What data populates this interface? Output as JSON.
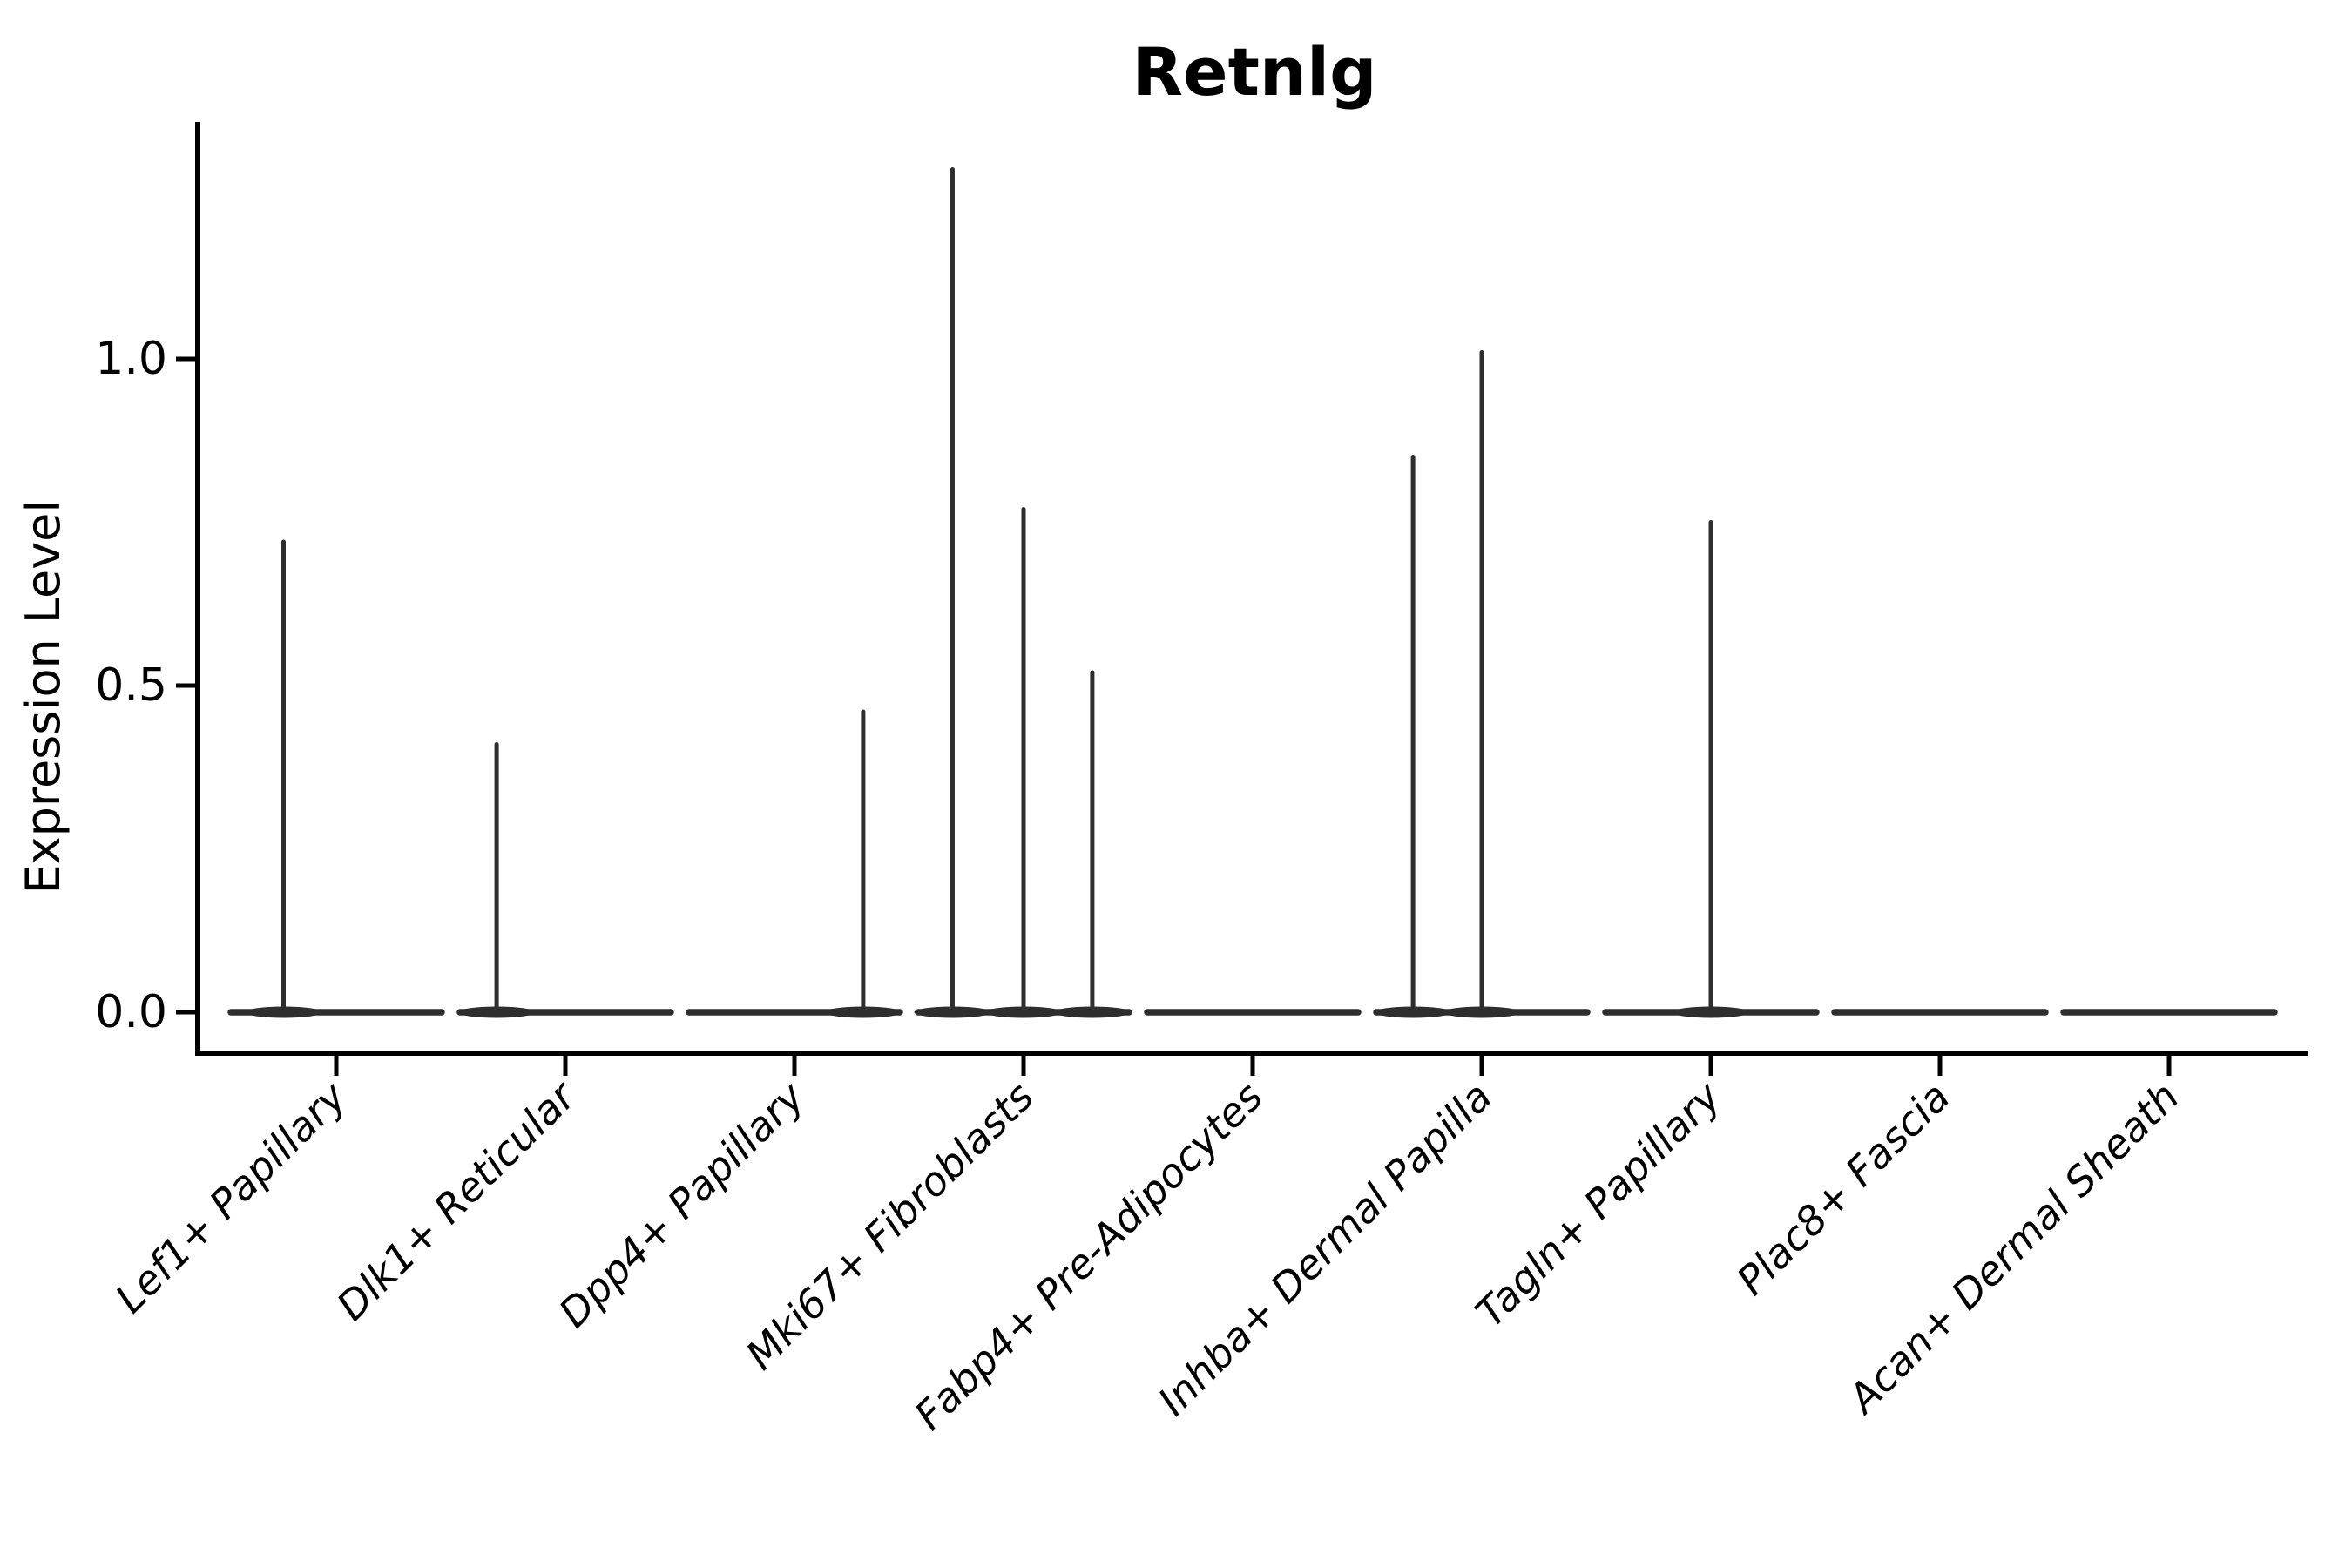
{
  "title": "Retnlg",
  "chart_data": {
    "type": "violin",
    "title": "Retnlg",
    "xlabel": "",
    "ylabel": "Expression Level",
    "yticks": [
      {
        "value": 0.0,
        "label": "0.0"
      },
      {
        "value": 0.5,
        "label": "0.5"
      },
      {
        "value": 1.0,
        "label": "1.0"
      }
    ],
    "ylim": [
      0.0,
      1.36
    ],
    "grid": false,
    "legend": "none",
    "categories": [
      "Lef1+ Papillary",
      "Dlk1+ Reticular",
      "Dpp4+ Papillary",
      "Mki67+ Fibroblasts",
      "Fabp4+ Pre-Adipocytes",
      "Inhba+ Dermal Papilla",
      "Tagln+ Papillary",
      "Plac8+ Fascia",
      "Acan+ Dermal Sheath"
    ],
    "violins": [
      {
        "category": "Lef1+ Papillary",
        "base_at_zero": true,
        "spikes": [
          {
            "offset_frac": -0.23,
            "value": 0.72
          }
        ]
      },
      {
        "category": "Dlk1+ Reticular",
        "base_at_zero": true,
        "spikes": [
          {
            "offset_frac": -0.3,
            "value": 0.41
          }
        ]
      },
      {
        "category": "Dpp4+ Papillary",
        "base_at_zero": true,
        "spikes": [
          {
            "offset_frac": 0.3,
            "value": 0.46
          }
        ]
      },
      {
        "category": "Mki67+ Fibroblasts",
        "base_at_zero": true,
        "spikes": [
          {
            "offset_frac": -0.31,
            "value": 1.29
          },
          {
            "offset_frac": 0.0,
            "value": 0.77
          },
          {
            "offset_frac": 0.3,
            "value": 0.52
          }
        ]
      },
      {
        "category": "Fabp4+ Pre-Adipocytes",
        "base_at_zero": true,
        "spikes": []
      },
      {
        "category": "Inhba+ Dermal Papilla",
        "base_at_zero": true,
        "spikes": [
          {
            "offset_frac": -0.3,
            "value": 0.85
          },
          {
            "offset_frac": 0.0,
            "value": 1.01
          }
        ]
      },
      {
        "category": "Tagln+ Papillary",
        "base_at_zero": true,
        "spikes": [
          {
            "offset_frac": 0.0,
            "value": 0.75
          }
        ]
      },
      {
        "category": "Plac8+ Fascia",
        "base_at_zero": true,
        "spikes": []
      },
      {
        "category": "Acan+ Dermal Sheath",
        "base_at_zero": true,
        "spikes": []
      }
    ],
    "colors": {
      "violin": "#2e2e2e",
      "axis": "#000000",
      "text": "#000000",
      "background": "#ffffff"
    }
  }
}
